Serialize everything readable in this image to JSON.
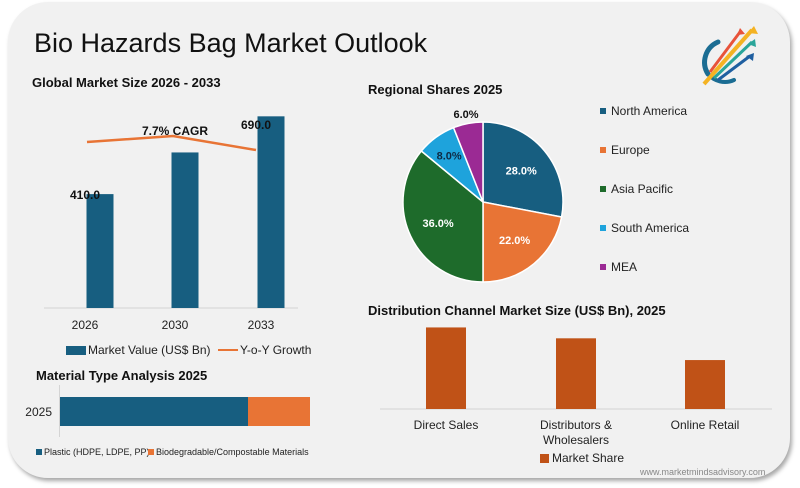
{
  "page": {
    "title": "Bio Hazards Bag Market Outlook",
    "footer_url": "www.marketmindsadvisory.com",
    "logo": "growth-arrows-logo-icon"
  },
  "colors": {
    "navy": "#175e80",
    "orange": "#e87435",
    "green": "#1e6b2b",
    "cyan": "#1ea3dc",
    "purple": "#9b2a94",
    "rust": "#c05217",
    "background": "#f1f1f1"
  },
  "chart_data": [
    {
      "id": "global-market-size",
      "type": "bar",
      "title": "Global Market Size 2026 - 2033",
      "categories": [
        "2026",
        "2030",
        "2033"
      ],
      "series": [
        {
          "name": "Market Value (US$ Bn)",
          "type": "bar",
          "values": [
            410.0,
            560.0,
            690.0
          ],
          "labels": [
            "410.0",
            "",
            "690.0"
          ]
        },
        {
          "name": "Y-o-Y Growth",
          "type": "line",
          "values": [
            7.4,
            7.7,
            7.0
          ]
        }
      ],
      "annotation": "7.7% CAGR",
      "ylim": [
        0,
        720
      ],
      "grid": false,
      "legend": "bottom"
    },
    {
      "id": "regional-shares",
      "type": "pie",
      "title": "Regional Shares 2025",
      "slices": [
        {
          "label": "North America",
          "value": 28.0,
          "display": "28.0%",
          "color": "#175e80"
        },
        {
          "label": "Europe",
          "value": 22.0,
          "display": "22.0%",
          "color": "#e87435"
        },
        {
          "label": "Asia Pacific",
          "value": 36.0,
          "display": "36.0%",
          "color": "#1e6b2b"
        },
        {
          "label": "South America",
          "value": 8.0,
          "display": "8.0%",
          "color": "#1ea3dc"
        },
        {
          "label": "MEA",
          "value": 6.0,
          "display": "6.0%",
          "color": "#9b2a94"
        }
      ],
      "legend": "right"
    },
    {
      "id": "material-type",
      "type": "bar",
      "orientation": "horizontal-stacked",
      "title": "Material Type Analysis 2025",
      "categories": [
        "2025"
      ],
      "series": [
        {
          "name": "Plastic (HDPE, LDPE, PP)",
          "values": [
            75
          ],
          "color": "#175e80"
        },
        {
          "name": "Biodegradable/Compostable Materials",
          "values": [
            25
          ],
          "color": "#e87435"
        }
      ],
      "xlim": [
        0,
        100
      ],
      "legend": "bottom"
    },
    {
      "id": "distribution-channel",
      "type": "bar",
      "title": "Distribution Channel Market Size (US$ Bn), 2025",
      "categories": [
        "Direct Sales",
        "Distributors & Wholesalers",
        "Online Retail"
      ],
      "category_lines": [
        [
          "Direct Sales"
        ],
        [
          "Distributors &",
          "Wholesalers"
        ],
        [
          "Online Retail"
        ]
      ],
      "series": [
        {
          "name": "Market Share",
          "values": [
            45,
            39,
            27
          ],
          "color": "#c05217"
        }
      ],
      "ylim": [
        0,
        48
      ],
      "legend": "bottom"
    }
  ]
}
